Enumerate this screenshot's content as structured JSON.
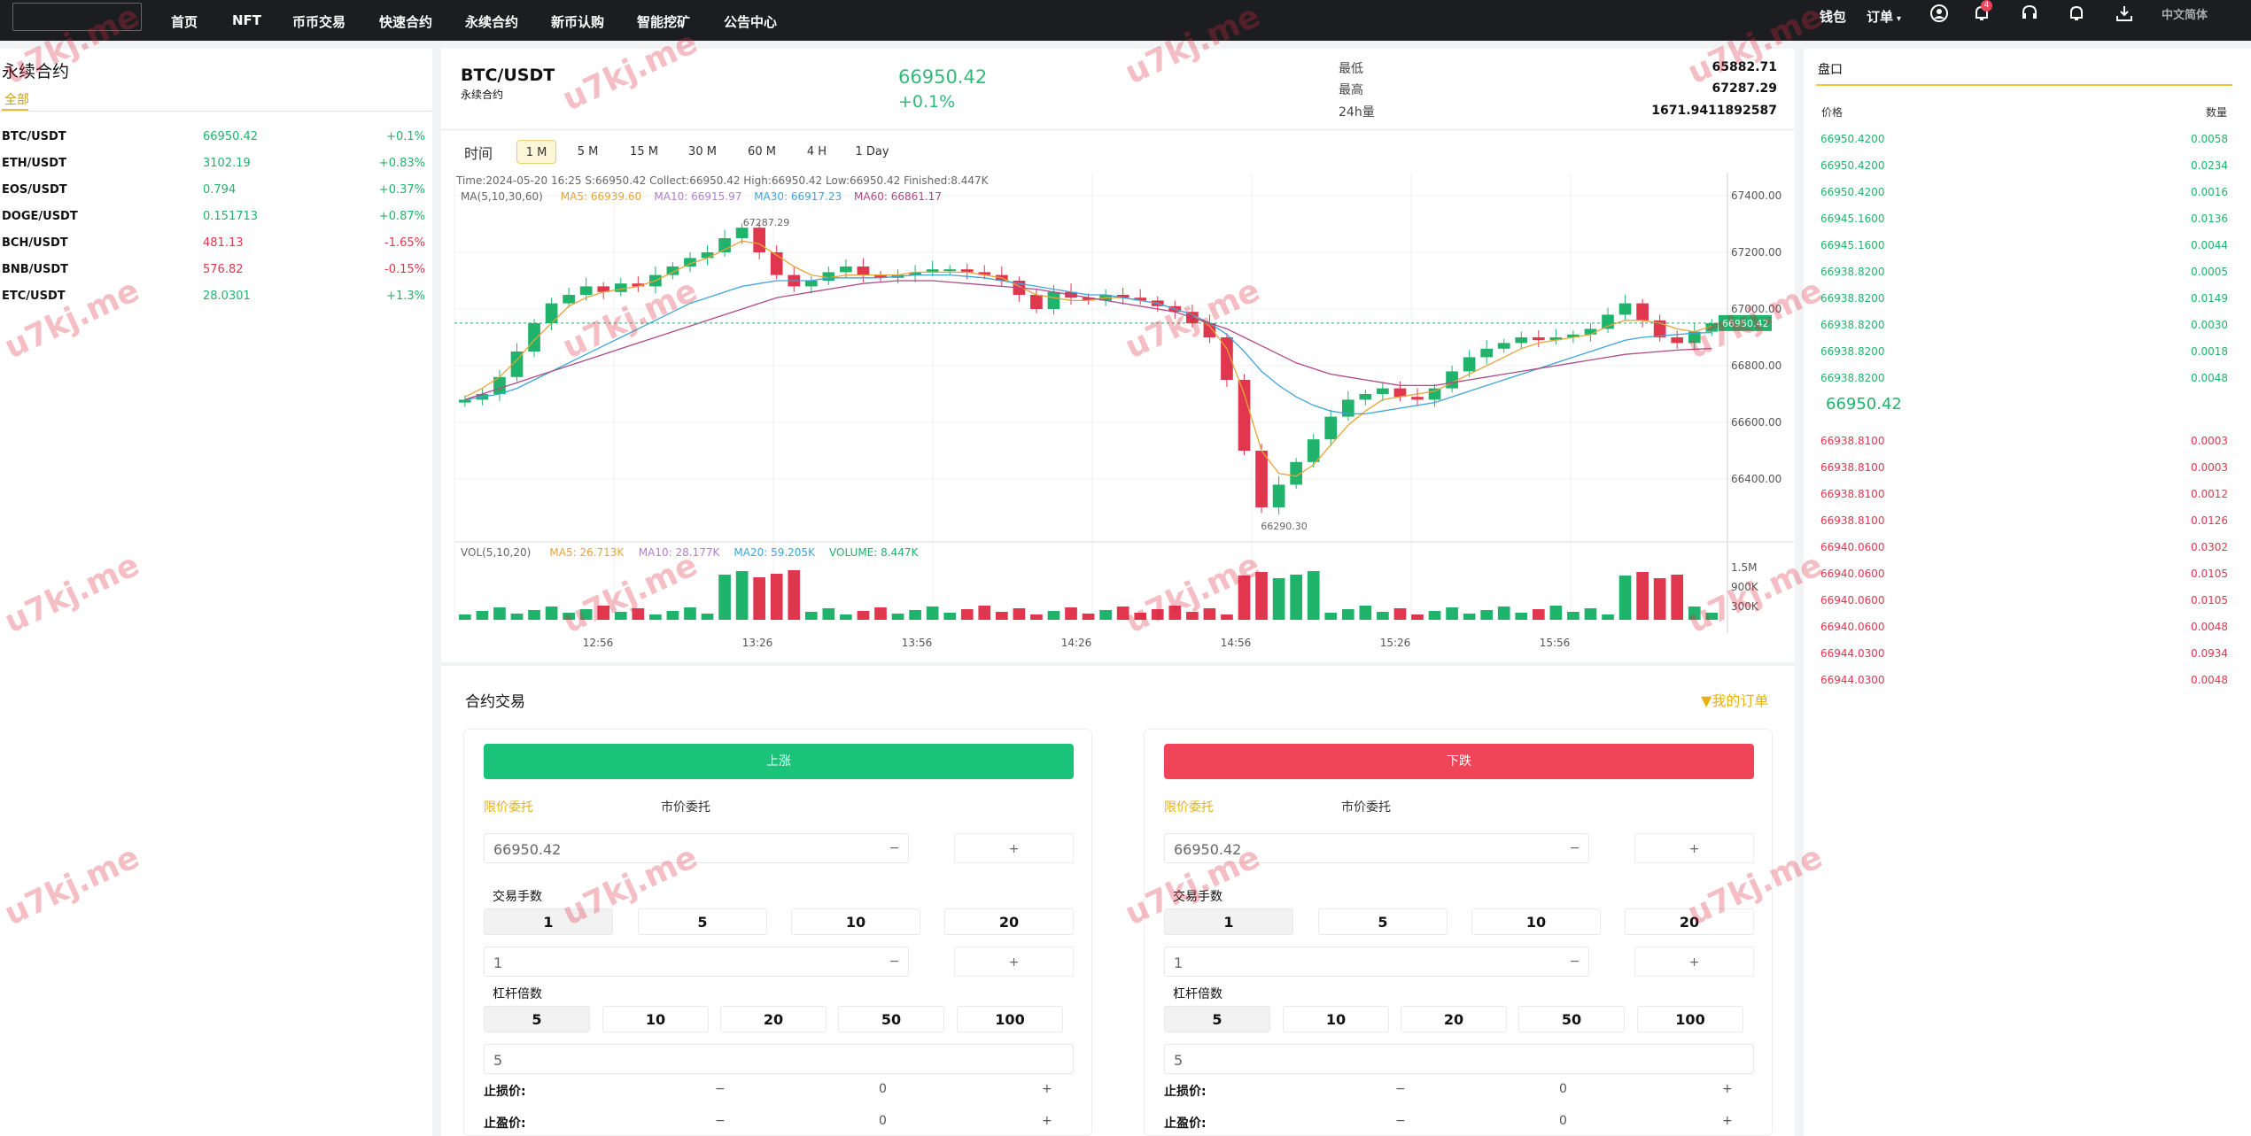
{
  "nav": {
    "items": [
      "首页",
      "NFT",
      "币币交易",
      "快速合约",
      "永续合约",
      "新币认购",
      "智能挖矿",
      "公告中心"
    ],
    "wallet": "钱包",
    "orders": "订单",
    "notification_count": "4",
    "language": "中文简体",
    "icons": [
      "user-icon",
      "bell-badge-icon",
      "headset-icon",
      "bell-icon",
      "download-icon"
    ]
  },
  "left": {
    "title": "永续合约",
    "tab": "全部",
    "markets": [
      {
        "symbol": "BTC/USDT",
        "price": "66950.42",
        "change": "+0.1%",
        "up": true
      },
      {
        "symbol": "ETH/USDT",
        "price": "3102.19",
        "change": "+0.83%",
        "up": true
      },
      {
        "symbol": "EOS/USDT",
        "price": "0.794",
        "change": "+0.37%",
        "up": true
      },
      {
        "symbol": "DOGE/USDT",
        "price": "0.151713",
        "change": "+0.87%",
        "up": true
      },
      {
        "symbol": "BCH/USDT",
        "price": "481.13",
        "change": "-1.65%",
        "up": false
      },
      {
        "symbol": "BNB/USDT",
        "price": "576.82",
        "change": "-0.15%",
        "up": false
      },
      {
        "symbol": "ETC/USDT",
        "price": "28.0301",
        "change": "+1.3%",
        "up": true
      }
    ]
  },
  "header": {
    "pair": "BTC/USDT",
    "sub": "永续合约",
    "price": "66950.42",
    "change": "+0.1%",
    "low_label": "最低",
    "low_value": "65882.71",
    "high_label": "最高",
    "high_value": "67287.29",
    "vol_label": "24h量",
    "vol_value": "1671.9411892587"
  },
  "timeframes": {
    "label": "时间",
    "options": [
      "1 M",
      "5 M",
      "15 M",
      "30 M",
      "60 M",
      "4 H",
      "1 Day"
    ],
    "active": "1 M"
  },
  "chart_info": {
    "ohlc_line": "Time:2024-05-20 16:25    S:66950.42    Collect:66950.42    High:66950.42    Low:66950.42    Finished:8.447K",
    "ma_label": "MA(5,10,30,60)",
    "ma5": "MA5: 66939.60",
    "ma10": "MA10: 66915.97",
    "ma30": "MA30: 66917.23",
    "ma60": "MA60: 66861.17",
    "vol_label": "VOL(5,10,20)",
    "vol_ma5": "MA5: 26.713K",
    "vol_ma10": "MA10: 28.177K",
    "vol_ma20": "MA20: 59.205K",
    "vol_volume": "VOLUME: 8.447K",
    "high_marker": "67287.29",
    "low_marker": "66290.30",
    "last_marker": "66950.42"
  },
  "chart_data": {
    "type": "candlestick",
    "ylim": [
      66200,
      67450
    ],
    "y_ticks": [
      "67400.00",
      "67200.00",
      "67000.00",
      "66800.00",
      "66600.00",
      "66400.00"
    ],
    "x_ticks": [
      "12:56",
      "13:26",
      "13:56",
      "14:26",
      "14:56",
      "15:26",
      "15:56"
    ],
    "vol_ticks": [
      "1.5M",
      "900K",
      "300K"
    ],
    "close": [
      66680,
      66700,
      66760,
      66850,
      66950,
      67020,
      67050,
      67080,
      67060,
      67090,
      67080,
      67120,
      67150,
      67180,
      67200,
      67250,
      67287,
      67200,
      67120,
      67080,
      67100,
      67130,
      67150,
      67120,
      67110,
      67120,
      67130,
      67140,
      67140,
      67130,
      67120,
      67100,
      67050,
      67000,
      67060,
      67040,
      67030,
      67050,
      67040,
      67030,
      67010,
      66990,
      66950,
      66900,
      66750,
      66500,
      66300,
      66380,
      66460,
      66540,
      66620,
      66680,
      66700,
      66720,
      66690,
      66680,
      66720,
      66780,
      66830,
      66860,
      66880,
      66900,
      66890,
      66900,
      66910,
      66930,
      66980,
      67020,
      66960,
      66900,
      66880,
      66920,
      66950
    ],
    "ma5": [
      66690,
      66720,
      66760,
      66820,
      66890,
      66950,
      67010,
      67040,
      67060,
      67070,
      67080,
      67100,
      67130,
      67160,
      67180,
      67210,
      67240,
      67230,
      67190,
      67150,
      67120,
      67110,
      67120,
      67120,
      67120,
      67120,
      67130,
      67130,
      67130,
      67130,
      67120,
      67110,
      67080,
      67050,
      67040,
      67030,
      67030,
      67040,
      67040,
      67030,
      67020,
      67000,
      66980,
      66940,
      66860,
      66700,
      66500,
      66420,
      66410,
      66450,
      66520,
      66590,
      66640,
      66680,
      66690,
      66700,
      66710,
      66740,
      66770,
      66800,
      66830,
      66860,
      66880,
      66890,
      66900,
      66910,
      66940,
      66960,
      66960,
      66950,
      66930,
      66920,
      66940
    ],
    "ma30": [
      66680,
      66690,
      66700,
      66720,
      66750,
      66780,
      66810,
      66840,
      66870,
      66900,
      66930,
      66960,
      66990,
      67020,
      67040,
      67060,
      67080,
      67090,
      67100,
      67100,
      67100,
      67110,
      67110,
      67110,
      67110,
      67115,
      67120,
      67120,
      67120,
      67115,
      67110,
      67100,
      67090,
      67080,
      67070,
      67060,
      67050,
      67050,
      67040,
      67030,
      67020,
      67000,
      66980,
      66950,
      66910,
      66850,
      66780,
      66730,
      66690,
      66660,
      66640,
      66630,
      66630,
      66640,
      66650,
      66660,
      66670,
      66690,
      66710,
      66730,
      66750,
      66770,
      66790,
      66810,
      66830,
      66850,
      66870,
      66890,
      66900,
      66905,
      66910,
      66915,
      66917
    ],
    "ma60": [
      66680,
      66700,
      66720,
      66740,
      66760,
      66780,
      66800,
      66820,
      66840,
      66860,
      66880,
      66900,
      66920,
      66940,
      66960,
      66980,
      67000,
      67020,
      67040,
      67050,
      67060,
      67070,
      67080,
      67090,
      67095,
      67100,
      67100,
      67100,
      67095,
      67090,
      67085,
      67080,
      67075,
      67070,
      67060,
      67050,
      67040,
      67030,
      67020,
      67010,
      67000,
      66990,
      66970,
      66950,
      66930,
      66900,
      66870,
      66840,
      66810,
      66790,
      66770,
      66760,
      66750,
      66740,
      66730,
      66730,
      66730,
      66740,
      66750,
      66760,
      66770,
      66780,
      66790,
      66800,
      66810,
      66820,
      66830,
      66840,
      66845,
      66850,
      66855,
      66858,
      66861
    ]
  },
  "orderbook": {
    "title": "盘口",
    "price_header": "价格",
    "qty_header": "数量",
    "bids": [
      {
        "price": "66950.4200",
        "qty": "0.0058"
      },
      {
        "price": "66950.4200",
        "qty": "0.0234"
      },
      {
        "price": "66950.4200",
        "qty": "0.0016"
      },
      {
        "price": "66945.1600",
        "qty": "0.0136"
      },
      {
        "price": "66945.1600",
        "qty": "0.0044"
      },
      {
        "price": "66938.8200",
        "qty": "0.0005"
      },
      {
        "price": "66938.8200",
        "qty": "0.0149"
      },
      {
        "price": "66938.8200",
        "qty": "0.0030"
      },
      {
        "price": "66938.8200",
        "qty": "0.0018"
      },
      {
        "price": "66938.8200",
        "qty": "0.0048"
      }
    ],
    "mid": "66950.42",
    "asks": [
      {
        "price": "66938.8100",
        "qty": "0.0003"
      },
      {
        "price": "66938.8100",
        "qty": "0.0003"
      },
      {
        "price": "66938.8100",
        "qty": "0.0012"
      },
      {
        "price": "66938.8100",
        "qty": "0.0126"
      },
      {
        "price": "66940.0600",
        "qty": "0.0302"
      },
      {
        "price": "66940.0600",
        "qty": "0.0105"
      },
      {
        "price": "66940.0600",
        "qty": "0.0105"
      },
      {
        "price": "66940.0600",
        "qty": "0.0048"
      },
      {
        "price": "66944.0300",
        "qty": "0.0934"
      },
      {
        "price": "66944.0300",
        "qty": "0.0048"
      }
    ]
  },
  "trade": {
    "title": "合约交易",
    "my_orders": "我的订单",
    "buy_label": "上涨",
    "sell_label": "下跌",
    "limit_label": "限价委托",
    "market_label": "市价委托",
    "buy_price": "66950.42",
    "sell_price": "66950.42",
    "minus": "−",
    "plus": "+",
    "lots_label": "交易手数",
    "lots": [
      "1",
      "5",
      "10",
      "20"
    ],
    "lots_value": "1",
    "leverage_label": "杠杆倍数",
    "leverage": [
      "5",
      "10",
      "20",
      "50",
      "100"
    ],
    "leverage_value": "5",
    "stop_loss_label": "止损价:",
    "take_profit_label": "止盈价:",
    "sl_value": "0",
    "tp_value": "0"
  },
  "watermark": "u7kj.me",
  "colors": {
    "up": "#20b36b",
    "down": "#e0364e",
    "accent": "#e6b21e",
    "ma5": "#e7a33b",
    "ma10": "#b07fd1",
    "ma30": "#3ea5d9",
    "ma60": "#b04a86"
  }
}
